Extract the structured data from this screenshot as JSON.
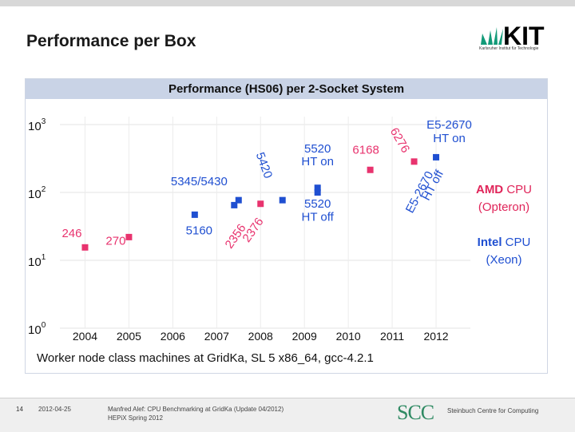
{
  "slide": {
    "title": "Performance per Box",
    "page_number": "14",
    "footer_date": "2012-04-25",
    "footer_line1": "Manfred Alef: CPU Benchmarking at GridKa (Update 04/2012)",
    "footer_line2": "HEPiX Spring 2012",
    "logo_text": "KIT",
    "logo_subtitle": "Karlsruher Institut für Technologie",
    "scc_logo_text": "SCC",
    "scc_name": "Steinbuch Centre for Computing"
  },
  "colors": {
    "amd": "#e8336e",
    "intel": "#1f4fd1",
    "amd_text": "#e0255a",
    "intel_text": "#1f4fd1",
    "title_bar": "#c9d3e6",
    "kit_green": "#129a78"
  },
  "chart_data": {
    "type": "scatter",
    "title": "Performance (HS06) per 2-Socket System",
    "xlabel": "Worker node class machines at GridKa, SL 5 x86_64, gcc-4.2.1",
    "ylabel": "",
    "yscale": "log",
    "ylim": [
      1,
      1000
    ],
    "xlim": [
      2003.5,
      2012.6
    ],
    "x_ticks": [
      "2004",
      "2005",
      "2006",
      "2007",
      "2008",
      "2009",
      "2010",
      "2011",
      "2012"
    ],
    "y_ticks": [
      {
        "value": 1,
        "base": "10",
        "exp": "0"
      },
      {
        "value": 10,
        "base": "10",
        "exp": "1"
      },
      {
        "value": 100,
        "base": "10",
        "exp": "2"
      },
      {
        "value": 1000,
        "base": "10",
        "exp": "3"
      }
    ],
    "grid": true,
    "series": [
      {
        "name": "AMD CPU (Opteron)",
        "color_key": "amd",
        "points": [
          {
            "x": 2004.0,
            "y": 15.5
          },
          {
            "x": 2005.0,
            "y": 22.0
          },
          {
            "x": 2008.0,
            "y": 68.0
          },
          {
            "x": 2010.5,
            "y": 215.0
          },
          {
            "x": 2011.5,
            "y": 285.0
          }
        ]
      },
      {
        "name": "Intel CPU (Xeon)",
        "color_key": "intel",
        "points": [
          {
            "x": 2006.5,
            "y": 47.0
          },
          {
            "x": 2007.4,
            "y": 65.0
          },
          {
            "x": 2007.5,
            "y": 77.0
          },
          {
            "x": 2008.5,
            "y": 77.0
          },
          {
            "x": 2009.3,
            "y": 100.0
          },
          {
            "x": 2009.3,
            "y": 117.0
          },
          {
            "x": 2012.0,
            "y": 330.0
          }
        ]
      }
    ],
    "point_labels": [
      {
        "text": "246",
        "color_key": "amd",
        "x": 2003.7,
        "y": 22.0,
        "rotate": 0
      },
      {
        "text": "270",
        "color_key": "amd",
        "x": 2004.7,
        "y": 17.0,
        "rotate": 0
      },
      {
        "text": "5345/5430",
        "color_key": "intel",
        "x": 2006.6,
        "y": 128.0,
        "rotate": 0
      },
      {
        "text": "5160",
        "color_key": "intel",
        "x": 2006.6,
        "y": 24.0,
        "rotate": 0
      },
      {
        "text": "5420",
        "color_key": "intel",
        "x": 2008.0,
        "y": 240.0,
        "rotate": 70
      },
      {
        "text": "2356",
        "color_key": "amd",
        "x": 2007.5,
        "y": 21.0,
        "rotate": -55
      },
      {
        "text": "2376",
        "color_key": "amd",
        "x": 2007.9,
        "y": 26.0,
        "rotate": -55
      },
      {
        "text": "5520",
        "color_key": "intel",
        "x": 2009.3,
        "y": 390.0,
        "rotate": 0
      },
      {
        "text": "HT on",
        "color_key": "intel",
        "x": 2009.3,
        "y": 250.0,
        "rotate": 0
      },
      {
        "text": "5520",
        "color_key": "intel",
        "x": 2009.3,
        "y": 60.0,
        "rotate": 0
      },
      {
        "text": "HT off",
        "color_key": "intel",
        "x": 2009.3,
        "y": 38.0,
        "rotate": 0
      },
      {
        "text": "6168",
        "color_key": "amd",
        "x": 2010.4,
        "y": 370.0,
        "rotate": 0
      },
      {
        "text": "6276",
        "color_key": "amd",
        "x": 2011.1,
        "y": 550.0,
        "rotate": 60
      },
      {
        "text": "E5-2670",
        "color_key": "intel",
        "x": 2012.3,
        "y": 870.0,
        "rotate": 0
      },
      {
        "text": "HT on",
        "color_key": "intel",
        "x": 2012.3,
        "y": 550.0,
        "rotate": 0
      },
      {
        "text": "E5-2670",
        "color_key": "intel",
        "x": 2011.7,
        "y": 95.0,
        "rotate": -62
      },
      {
        "text": "HT off",
        "color_key": "intel",
        "x": 2012.0,
        "y": 120.0,
        "rotate": -62
      }
    ],
    "legend": [
      {
        "bold": "AMD",
        "rest": " CPU",
        "sub": "(Opteron)",
        "color_key": "amd_text"
      },
      {
        "bold": "Intel",
        "rest": " CPU",
        "sub": "(Xeon)",
        "color_key": "intel_text"
      }
    ],
    "legend_position": "right"
  }
}
